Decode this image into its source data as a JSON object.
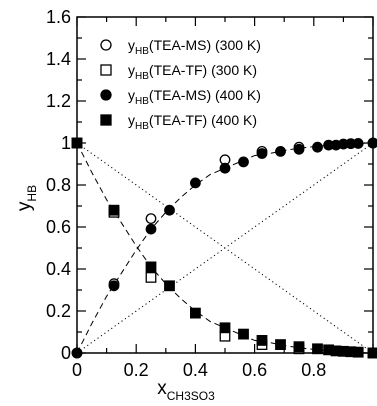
{
  "chart_data": {
    "type": "scatter",
    "xlabel": {
      "main": "x",
      "sub": "CH3SO3"
    },
    "ylabel": {
      "main": "y",
      "sub": "HB"
    },
    "xlim": [
      0,
      1
    ],
    "ylim": [
      0,
      1.6
    ],
    "x_ticks": [
      0,
      0.2,
      0.4,
      0.6,
      0.8
    ],
    "x_tick_labels": [
      "0",
      "0.2",
      "0.4",
      "0.6",
      "0.8"
    ],
    "y_ticks": [
      0,
      0.2,
      0.4,
      0.6,
      0.8,
      1,
      1.2,
      1.4,
      1.6
    ],
    "y_tick_labels": [
      "0",
      "0.2",
      "0.4",
      "0.6",
      "0.8",
      "1",
      "1.2",
      "1.4",
      "1.6"
    ],
    "grid": false,
    "legend_position": "top-right",
    "series": [
      {
        "name": "y(TEA-MS) (300 K)",
        "label_main": "y",
        "label_sub": "HB",
        "label_rest": "(TEA-MS) (300 K)",
        "marker": "circle-open",
        "points": [
          [
            0,
            0
          ],
          [
            0.125,
            0.33
          ],
          [
            0.25,
            0.64
          ],
          [
            0.5,
            0.92
          ],
          [
            0.625,
            0.96
          ],
          [
            0.75,
            0.98
          ],
          [
            1,
            1
          ]
        ]
      },
      {
        "name": "y(TEA-TF) (300 K)",
        "label_main": "y",
        "label_sub": "HB",
        "label_rest": "(TEA-TF) (300 K)",
        "marker": "square-open",
        "points": [
          [
            0,
            1
          ],
          [
            0.125,
            0.67
          ],
          [
            0.25,
            0.36
          ],
          [
            0.5,
            0.08
          ],
          [
            0.625,
            0.04
          ],
          [
            0.75,
            0.02
          ],
          [
            1,
            0
          ]
        ]
      },
      {
        "name": "y(TEA-MS) (400 K)",
        "label_main": "y",
        "label_sub": "HB",
        "label_rest": "(TEA-MS) (400 K)",
        "marker": "circle-filled",
        "points": [
          [
            0,
            0
          ],
          [
            0.125,
            0.32
          ],
          [
            0.25,
            0.59
          ],
          [
            0.3125,
            0.68
          ],
          [
            0.4,
            0.81
          ],
          [
            0.5,
            0.88
          ],
          [
            0.5625,
            0.91
          ],
          [
            0.625,
            0.95
          ],
          [
            0.6875,
            0.96
          ],
          [
            0.75,
            0.97
          ],
          [
            0.8125,
            0.98
          ],
          [
            0.85,
            0.99
          ],
          [
            0.875,
            0.99
          ],
          [
            0.9,
            0.995
          ],
          [
            0.925,
            0.997
          ],
          [
            0.95,
            0.998
          ],
          [
            1,
            1
          ]
        ]
      },
      {
        "name": "y(TEA-TF) (400 K)",
        "label_main": "y",
        "label_sub": "HB",
        "label_rest": "(TEA-TF) (400 K)",
        "marker": "square-filled",
        "points": [
          [
            0,
            1
          ],
          [
            0.125,
            0.68
          ],
          [
            0.25,
            0.41
          ],
          [
            0.3125,
            0.32
          ],
          [
            0.4,
            0.19
          ],
          [
            0.5,
            0.12
          ],
          [
            0.5625,
            0.09
          ],
          [
            0.625,
            0.06
          ],
          [
            0.6875,
            0.04
          ],
          [
            0.75,
            0.03
          ],
          [
            0.8125,
            0.02
          ],
          [
            0.85,
            0.015
          ],
          [
            0.875,
            0.01
          ],
          [
            0.9,
            0.008
          ],
          [
            0.925,
            0.006
          ],
          [
            0.95,
            0.004
          ],
          [
            1,
            0
          ]
        ]
      }
    ],
    "fit_curves": [
      {
        "name": "fit-ms",
        "style": "dashed",
        "points": [
          [
            0,
            0
          ],
          [
            0.05,
            0.14
          ],
          [
            0.1,
            0.27
          ],
          [
            0.15,
            0.38
          ],
          [
            0.2,
            0.49
          ],
          [
            0.25,
            0.59
          ],
          [
            0.3,
            0.67
          ],
          [
            0.35,
            0.74
          ],
          [
            0.4,
            0.8
          ],
          [
            0.45,
            0.85
          ],
          [
            0.5,
            0.88
          ],
          [
            0.55,
            0.91
          ],
          [
            0.6,
            0.94
          ],
          [
            0.65,
            0.95
          ],
          [
            0.7,
            0.965
          ],
          [
            0.75,
            0.975
          ],
          [
            0.8,
            0.983
          ],
          [
            0.85,
            0.99
          ],
          [
            0.9,
            0.995
          ],
          [
            0.95,
            0.998
          ],
          [
            1,
            1
          ]
        ]
      },
      {
        "name": "fit-tf",
        "style": "dashed",
        "points": [
          [
            0,
            1
          ],
          [
            0.05,
            0.86
          ],
          [
            0.1,
            0.73
          ],
          [
            0.15,
            0.62
          ],
          [
            0.2,
            0.51
          ],
          [
            0.25,
            0.41
          ],
          [
            0.3,
            0.33
          ],
          [
            0.35,
            0.26
          ],
          [
            0.4,
            0.2
          ],
          [
            0.45,
            0.15
          ],
          [
            0.5,
            0.12
          ],
          [
            0.55,
            0.09
          ],
          [
            0.6,
            0.06
          ],
          [
            0.65,
            0.05
          ],
          [
            0.7,
            0.035
          ],
          [
            0.75,
            0.025
          ],
          [
            0.8,
            0.017
          ],
          [
            0.85,
            0.01
          ],
          [
            0.9,
            0.005
          ],
          [
            0.95,
            0.002
          ],
          [
            1,
            0
          ]
        ]
      },
      {
        "name": "ideal-increasing",
        "style": "dotted",
        "points": [
          [
            0,
            0
          ],
          [
            1,
            1
          ]
        ]
      },
      {
        "name": "ideal-decreasing",
        "style": "dotted",
        "points": [
          [
            0,
            1
          ],
          [
            1,
            0
          ]
        ]
      }
    ]
  }
}
